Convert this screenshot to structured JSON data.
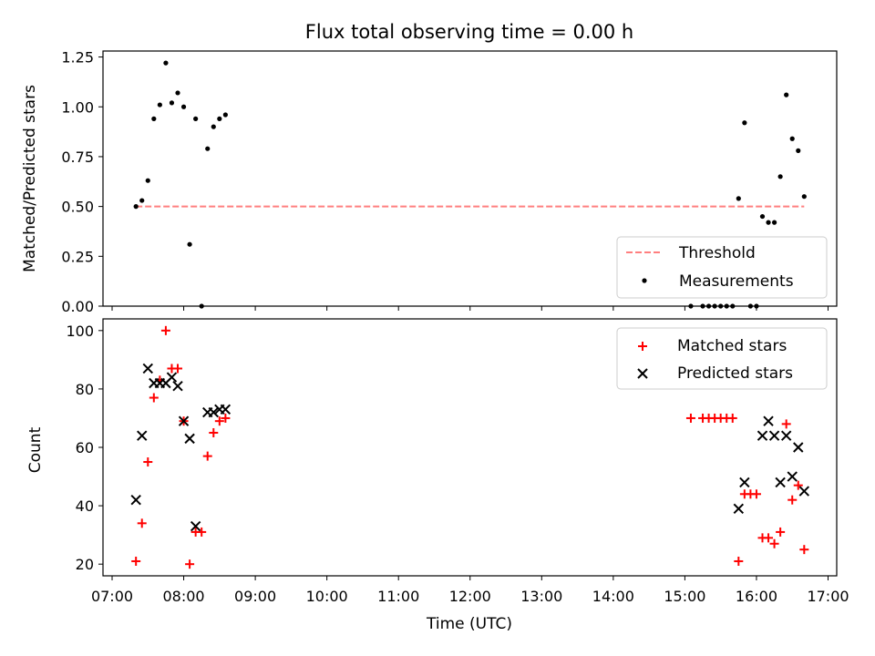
{
  "chart_data": [
    {
      "type": "scatter",
      "title": "Flux total observing time = 0.00 h",
      "xlabel": "",
      "ylabel": "Matched/Predicted stars",
      "xlim": [
        "07:00",
        "17:00"
      ],
      "ylim": [
        0,
        1.28
      ],
      "xticks": [
        "07:00",
        "08:00",
        "09:00",
        "10:00",
        "11:00",
        "12:00",
        "13:00",
        "14:00",
        "15:00",
        "16:00",
        "17:00"
      ],
      "yticks": [
        "0.00",
        "0.25",
        "0.50",
        "0.75",
        "1.00",
        "1.25"
      ],
      "legend_position": "lower right",
      "threshold": {
        "name": "Threshold",
        "color": "#ff7f7f",
        "style": "dashed",
        "y": 0.5,
        "x_start": "07:20",
        "x_end": "16:40"
      },
      "series": [
        {
          "name": "Measurements",
          "color": "#000000",
          "marker": "dot",
          "points": [
            [
              "07:20",
              0.5
            ],
            [
              "07:25",
              0.53
            ],
            [
              "07:30",
              0.63
            ],
            [
              "07:35",
              0.94
            ],
            [
              "07:40",
              1.01
            ],
            [
              "07:45",
              1.22
            ],
            [
              "07:50",
              1.02
            ],
            [
              "07:55",
              1.07
            ],
            [
              "08:00",
              1.0
            ],
            [
              "08:05",
              0.31
            ],
            [
              "08:10",
              0.94
            ],
            [
              "08:15",
              0.0
            ],
            [
              "08:20",
              0.79
            ],
            [
              "08:25",
              0.9
            ],
            [
              "08:30",
              0.94
            ],
            [
              "08:35",
              0.96
            ],
            [
              "15:05",
              0.0
            ],
            [
              "15:15",
              0.0
            ],
            [
              "15:20",
              0.0
            ],
            [
              "15:25",
              0.0
            ],
            [
              "15:30",
              0.0
            ],
            [
              "15:35",
              0.0
            ],
            [
              "15:40",
              0.0
            ],
            [
              "15:45",
              0.54
            ],
            [
              "15:50",
              0.92
            ],
            [
              "15:55",
              0.0
            ],
            [
              "16:00",
              0.0
            ],
            [
              "16:05",
              0.45
            ],
            [
              "16:10",
              0.42
            ],
            [
              "16:15",
              0.42
            ],
            [
              "16:20",
              0.65
            ],
            [
              "16:25",
              1.06
            ],
            [
              "16:30",
              0.84
            ],
            [
              "16:35",
              0.78
            ],
            [
              "16:40",
              0.55
            ]
          ]
        }
      ]
    },
    {
      "type": "scatter",
      "title": "",
      "xlabel": "Time (UTC)",
      "ylabel": "Count",
      "xlim": [
        "07:00",
        "17:00"
      ],
      "ylim": [
        16,
        104
      ],
      "xticks": [
        "07:00",
        "08:00",
        "09:00",
        "10:00",
        "11:00",
        "12:00",
        "13:00",
        "14:00",
        "15:00",
        "16:00",
        "17:00"
      ],
      "yticks": [
        "20",
        "40",
        "60",
        "80",
        "100"
      ],
      "legend_position": "upper right",
      "series": [
        {
          "name": "Matched stars",
          "color": "#ff0000",
          "marker": "plus",
          "points": [
            [
              "07:20",
              21
            ],
            [
              "07:25",
              34
            ],
            [
              "07:30",
              55
            ],
            [
              "07:35",
              77
            ],
            [
              "07:40",
              83
            ],
            [
              "07:45",
              100
            ],
            [
              "07:50",
              87
            ],
            [
              "07:55",
              87
            ],
            [
              "08:00",
              69
            ],
            [
              "08:05",
              20
            ],
            [
              "08:10",
              31
            ],
            [
              "08:15",
              31
            ],
            [
              "08:20",
              57
            ],
            [
              "08:25",
              65
            ],
            [
              "08:30",
              69
            ],
            [
              "08:35",
              70
            ],
            [
              "15:05",
              70
            ],
            [
              "15:15",
              70
            ],
            [
              "15:20",
              70
            ],
            [
              "15:25",
              70
            ],
            [
              "15:30",
              70
            ],
            [
              "15:35",
              70
            ],
            [
              "15:40",
              70
            ],
            [
              "15:45",
              21
            ],
            [
              "15:50",
              44
            ],
            [
              "15:55",
              44
            ],
            [
              "16:00",
              44
            ],
            [
              "16:05",
              29
            ],
            [
              "16:10",
              29
            ],
            [
              "16:15",
              27
            ],
            [
              "16:20",
              31
            ],
            [
              "16:25",
              68
            ],
            [
              "16:30",
              42
            ],
            [
              "16:35",
              47
            ],
            [
              "16:40",
              25
            ]
          ]
        },
        {
          "name": "Predicted stars",
          "color": "#000000",
          "marker": "x",
          "points": [
            [
              "07:20",
              42
            ],
            [
              "07:25",
              64
            ],
            [
              "07:30",
              87
            ],
            [
              "07:35",
              82
            ],
            [
              "07:40",
              82
            ],
            [
              "07:45",
              82
            ],
            [
              "07:50",
              84
            ],
            [
              "07:55",
              81
            ],
            [
              "08:00",
              69
            ],
            [
              "08:05",
              63
            ],
            [
              "08:10",
              33
            ],
            [
              "08:20",
              72
            ],
            [
              "08:25",
              72
            ],
            [
              "08:30",
              73
            ],
            [
              "08:35",
              73
            ],
            [
              "15:45",
              39
            ],
            [
              "15:50",
              48
            ],
            [
              "16:05",
              64
            ],
            [
              "16:10",
              69
            ],
            [
              "16:15",
              64
            ],
            [
              "16:20",
              48
            ],
            [
              "16:25",
              64
            ],
            [
              "16:30",
              50
            ],
            [
              "16:35",
              60
            ],
            [
              "16:40",
              45
            ]
          ]
        }
      ]
    }
  ]
}
